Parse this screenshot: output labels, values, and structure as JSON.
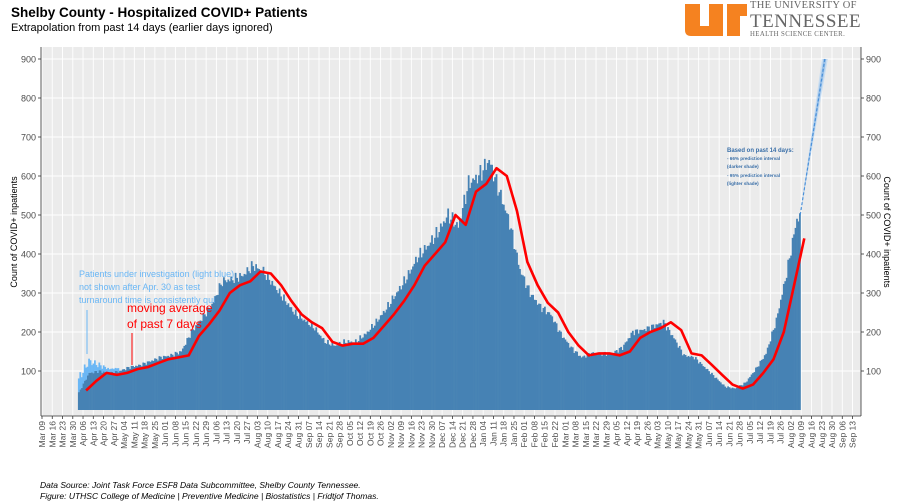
{
  "header": {
    "title": "Shelby County - Hospitalized COVID+ Patients",
    "subtitle": "Extrapolation from past 14 days (earlier days ignored)"
  },
  "logo": {
    "line1": "THE UNIVERSITY OF",
    "line2": "TENNESSEE",
    "line3": "HEALTH SCIENCE CENTER.",
    "color": "#F58220"
  },
  "footer": {
    "line1": "Data Source: Joint Task Force ESF8 Data Subcommittee, Shelby County Tennessee.",
    "line2": "Figure: UTHSC College of Medicine | Preventive Medicine | Biostatistics | Fridtjof Thomas."
  },
  "chart_data": {
    "type": "bar",
    "title": "Shelby County - Hospitalized COVID+ Patients",
    "subtitle": "Extrapolation from past 14 days (earlier days ignored)",
    "xlabel": "",
    "ylabel": "Count of COVID+ inpatients",
    "ylabel_right": "Count of COVID+ inpatients",
    "ylim": [
      0,
      930
    ],
    "yticks": [
      100,
      200,
      300,
      400,
      500,
      600,
      700,
      800,
      900
    ],
    "grid": true,
    "colors": {
      "bars": "#4682B4",
      "pui_bars": "#6BB7F5",
      "moving_average": "#FF0000",
      "projection": "#4A90D9",
      "panel": "#EBEBEB",
      "annotation_blue": "#6BB7F5",
      "annotation_red": "#FF0000",
      "legend_text": "#3A6FA8"
    },
    "x_tick_labels": [
      "Mar 09",
      "Mar 16",
      "Mar 23",
      "Mar 30",
      "Apr 06",
      "Apr 13",
      "Apr 20",
      "Apr 27",
      "May 04",
      "May 11",
      "May 18",
      "May 25",
      "Jun 01",
      "Jun 08",
      "Jun 15",
      "Jun 22",
      "Jun 29",
      "Jul 06",
      "Jul 13",
      "Jul 20",
      "Jul 27",
      "Aug 03",
      "Aug 10",
      "Aug 17",
      "Aug 24",
      "Aug 31",
      "Sep 07",
      "Sep 14",
      "Sep 21",
      "Sep 28",
      "Oct 05",
      "Oct 12",
      "Oct 19",
      "Oct 26",
      "Nov 02",
      "Nov 09",
      "Nov 16",
      "Nov 23",
      "Nov 30",
      "Dec 07",
      "Dec 14",
      "Dec 21",
      "Dec 28",
      "Jan 04",
      "Jan 11",
      "Jan 18",
      "Jan 25",
      "Feb 01",
      "Feb 08",
      "Feb 15",
      "Feb 22",
      "Mar 01",
      "Mar 08",
      "Mar 15",
      "Mar 22",
      "Mar 29",
      "Apr 05",
      "Apr 12",
      "Apr 19",
      "Apr 26",
      "May 03",
      "May 10",
      "May 17",
      "May 24",
      "May 31",
      "Jun 07",
      "Jun 14",
      "Jun 21",
      "Jun 28",
      "Jul 05",
      "Jul 12",
      "Jul 19",
      "Jul 26",
      "Aug 02",
      "Aug 09",
      "Aug 16",
      "Aug 23",
      "Aug 30",
      "Sep 06",
      "Sep 13"
    ],
    "weekly_start_index": 3,
    "weekly_counts": [
      45,
      95,
      100,
      95,
      100,
      110,
      115,
      125,
      135,
      140,
      150,
      200,
      235,
      270,
      330,
      335,
      345,
      370,
      355,
      320,
      285,
      250,
      230,
      210,
      175,
      165,
      175,
      175,
      195,
      225,
      260,
      300,
      340,
      390,
      420,
      455,
      500,
      470,
      580,
      600,
      640,
      560,
      480,
      360,
      300,
      265,
      245,
      195,
      160,
      135,
      145,
      145,
      145,
      160,
      200,
      205,
      215,
      225,
      185,
      140,
      135,
      110,
      85,
      60,
      55,
      70,
      105,
      145,
      230,
      350,
      490
    ],
    "pui_weekly_extra": [
      35,
      30,
      15,
      10,
      8
    ],
    "moving_average_start_index": 4,
    "moving_average": [
      50,
      75,
      95,
      90,
      95,
      105,
      110,
      120,
      130,
      135,
      140,
      190,
      220,
      255,
      300,
      320,
      330,
      355,
      350,
      320,
      280,
      245,
      225,
      210,
      175,
      165,
      170,
      170,
      185,
      215,
      245,
      280,
      320,
      370,
      400,
      430,
      500,
      475,
      560,
      580,
      620,
      600,
      510,
      380,
      320,
      275,
      250,
      200,
      165,
      140,
      145,
      145,
      140,
      150,
      185,
      200,
      210,
      225,
      205,
      145,
      140,
      115,
      90,
      65,
      55,
      65,
      95,
      130,
      200,
      320,
      440
    ],
    "projection": {
      "from_index": 73.9,
      "from_value": 500,
      "to_index": 76.3,
      "to_value": 900
    },
    "annotations": {
      "pui": [
        "Patients under investigation (light blue)",
        "not shown after Apr. 30 as test",
        "turnaround time is consistently qui"
      ],
      "moving_average": [
        "moving average",
        "of past 7 days"
      ],
      "prediction": [
        "Based on past 14 days:",
        "- 66% prediction interval",
        "(darker shade)",
        "- 95% prediction interval",
        "(lighter shade)"
      ]
    }
  }
}
